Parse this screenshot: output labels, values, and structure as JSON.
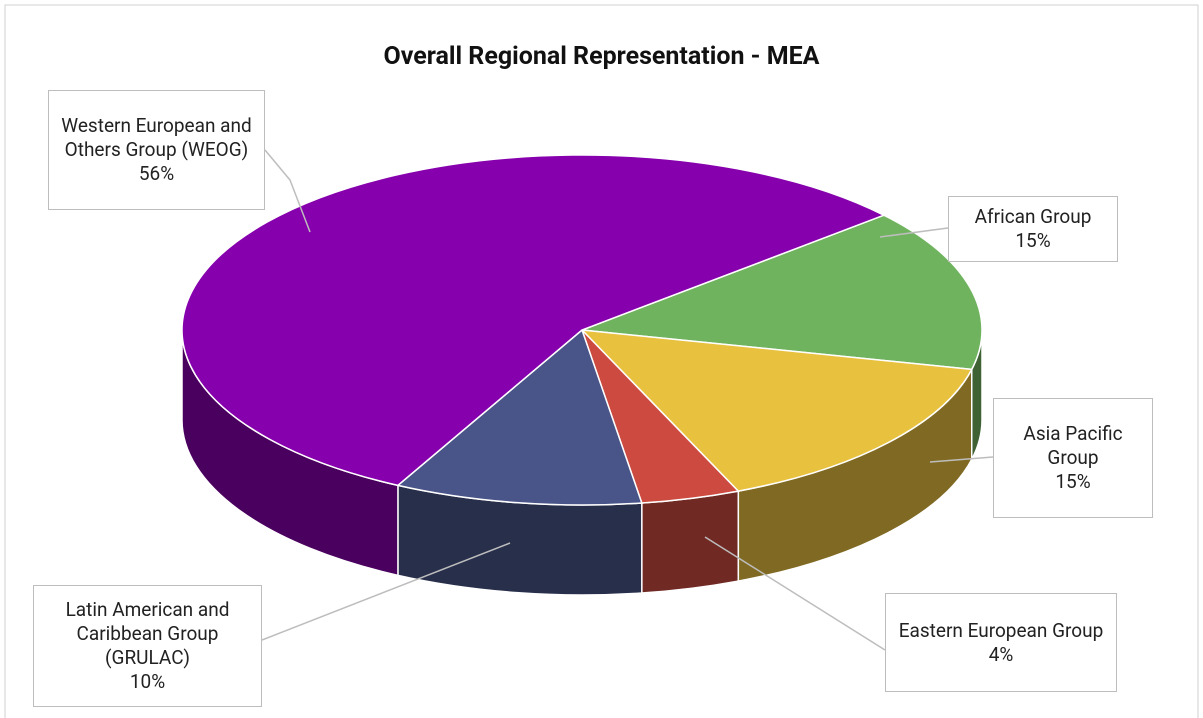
{
  "chart_data": {
    "type": "pie",
    "title": "Overall Regional Representation - MEA",
    "categories": [
      "African Group",
      "Asia Pacific Group",
      "Eastern European Group",
      "Latin American and Caribbean Group (GRULAC)",
      "Western European and Others Group (WEOG)"
    ],
    "values": [
      15,
      15,
      4,
      10,
      56
    ],
    "value_labels": [
      "15%",
      "15%",
      "4%",
      "10%",
      "56%"
    ],
    "colors": [
      "#70b35f",
      "#e8c13f",
      "#cc4a3f",
      "#495588",
      "#8600ad"
    ]
  }
}
